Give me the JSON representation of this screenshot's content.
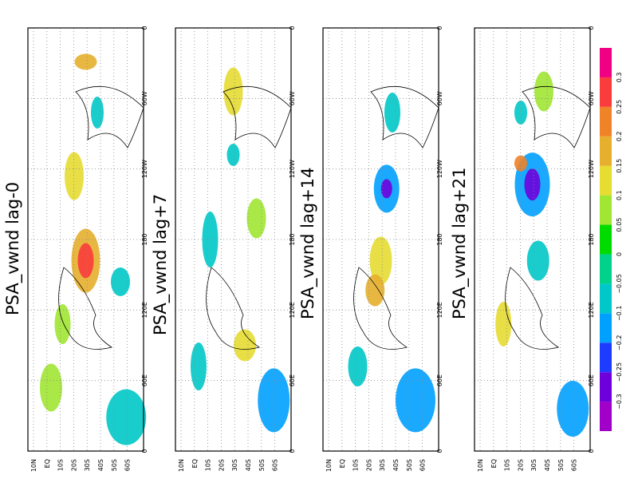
{
  "panels": [
    {
      "title": "PSA_vwnd lag-0"
    },
    {
      "title": "PSA_vwnd lag+7"
    },
    {
      "title": "PSA_vwnd lag+14"
    },
    {
      "title": "PSA_vwnd lag+21"
    }
  ],
  "lat_labels": [
    "10N",
    "EQ",
    "10S",
    "20S",
    "30S",
    "40S",
    "50S",
    "60S"
  ],
  "lon_labels": [
    "0",
    "60E",
    "120E",
    "180",
    "120W",
    "60W",
    "0"
  ],
  "colorbar": {
    "labels": [
      "−0.3",
      "−0.25",
      "−0.2",
      "−0.1",
      "−0.05",
      "0",
      "0.05",
      "0.1",
      "0.15",
      "0.2",
      "0.25",
      "0.3"
    ],
    "colors": [
      "#a000c8",
      "#6e00dc",
      "#1e3cff",
      "#00a0ff",
      "#00c8c8",
      "#00d28c",
      "#00dc00",
      "#a0e632",
      "#e6dc32",
      "#e6af2d",
      "#f08228",
      "#fa3c3c",
      "#f00082"
    ]
  }
}
